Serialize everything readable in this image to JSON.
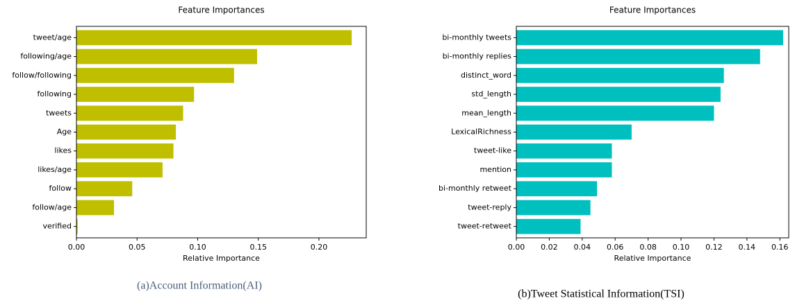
{
  "chart_data": [
    {
      "type": "barh",
      "title": "Feature Importances",
      "xlabel": "Relative Importance",
      "caption": "(a)Account Information(AI)",
      "color": "#bfbf00",
      "categories": [
        "tweet/age",
        "following/age",
        "follow/following",
        "following",
        "tweets",
        "Age",
        "likes",
        "likes/age",
        "follow",
        "follow/age",
        "verified"
      ],
      "values": [
        0.227,
        0.149,
        0.13,
        0.097,
        0.088,
        0.082,
        0.08,
        0.071,
        0.046,
        0.031,
        0.001
      ],
      "xlim": [
        0,
        0.239
      ],
      "xticks": [
        {
          "value": 0,
          "label": "0.00"
        },
        0.05,
        {
          "value": 0.1,
          "label": "0.10"
        },
        0.15,
        {
          "value": 0.2,
          "label": "0.20"
        }
      ],
      "grid": false
    },
    {
      "type": "barh",
      "title": "Feature Importances",
      "xlabel": "Relative Importance",
      "caption": "(b)Tweet Statistical Information(TSI)",
      "color": "#00bfbf",
      "categories": [
        "bi-monthly tweets",
        "bi-monthly replies",
        "distinct_word",
        "std_length",
        "mean_length",
        "LexicalRichness",
        "tweet-like",
        "mention",
        "bi-monthly retweet",
        "tweet-reply",
        "tweet-retweet"
      ],
      "values": [
        0.162,
        0.148,
        0.126,
        0.124,
        0.12,
        0.07,
        0.058,
        0.058,
        0.049,
        0.045,
        0.039
      ],
      "xlim": [
        0,
        0.1654
      ],
      "xticks": [
        {
          "value": 0,
          "label": "0.00"
        },
        0.02,
        0.04,
        0.06,
        0.08,
        {
          "value": 0.1,
          "label": "0.10"
        },
        0.12,
        0.14,
        0.16
      ],
      "grid": false
    }
  ]
}
